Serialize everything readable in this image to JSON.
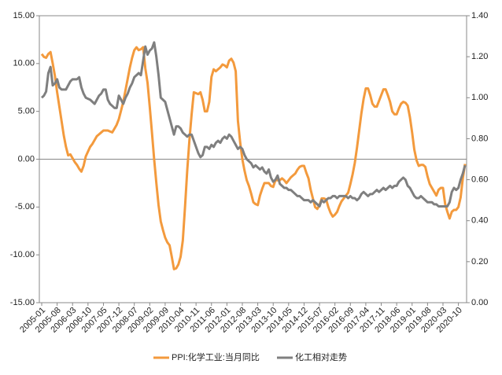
{
  "chart_data": {
    "type": "line",
    "categories": [
      "2005-01",
      null,
      null,
      null,
      null,
      null,
      null,
      "2005-08",
      null,
      null,
      null,
      null,
      null,
      null,
      "2006-03",
      null,
      null,
      null,
      null,
      null,
      null,
      "2006-10",
      null,
      null,
      null,
      null,
      null,
      null,
      "2007-05",
      null,
      null,
      null,
      null,
      null,
      null,
      "2007-12",
      null,
      null,
      null,
      null,
      null,
      null,
      "2008-07",
      null,
      null,
      null,
      null,
      null,
      null,
      "2009-02",
      null,
      null,
      null,
      null,
      null,
      null,
      "2009-09",
      null,
      null,
      null,
      null,
      null,
      null,
      "2010-04",
      null,
      null,
      null,
      null,
      null,
      null,
      "2010-11",
      null,
      null,
      null,
      null,
      null,
      null,
      "2011-06",
      null,
      null,
      null,
      null,
      null,
      null,
      "2012-01",
      null,
      null,
      null,
      null,
      null,
      null,
      "2012-08",
      null,
      null,
      null,
      null,
      null,
      null,
      "2013-03",
      null,
      null,
      null,
      null,
      null,
      null,
      "2013-10",
      null,
      null,
      null,
      null,
      null,
      null,
      "2014-05",
      null,
      null,
      null,
      null,
      null,
      null,
      "2014-12",
      null,
      null,
      null,
      null,
      null,
      null,
      "2015-07",
      null,
      null,
      null,
      null,
      null,
      null,
      "2016-02",
      null,
      null,
      null,
      null,
      null,
      null,
      "2016-09",
      null,
      null,
      null,
      null,
      null,
      null,
      "2017-04",
      null,
      null,
      null,
      null,
      null,
      null,
      "2017-11",
      null,
      null,
      null,
      null,
      null,
      null,
      "2018-06",
      null,
      null,
      null,
      null,
      null,
      null,
      "2019-01",
      null,
      null,
      null,
      null,
      null,
      null,
      "2019-08",
      null,
      null,
      null,
      null,
      null,
      null,
      "2020-03",
      null,
      null,
      null,
      null,
      null,
      null,
      "2020-10",
      null,
      null,
      null
    ],
    "series": [
      {
        "name": "PPI:化学工业:当月同比",
        "color": "#f39a3d",
        "values": [
          11,
          10.7,
          10.6,
          11,
          11.2,
          10,
          8.7,
          7,
          5.5,
          4,
          2.5,
          1.3,
          0.4,
          0.5,
          0.1,
          -0.3,
          -0.6,
          -1.0,
          -1.3,
          -0.7,
          0.3,
          0.8,
          1.3,
          1.6,
          2,
          2.4,
          2.6,
          2.8,
          3,
          3,
          3,
          2.9,
          2.8,
          3.2,
          3.6,
          4.2,
          5.1,
          6,
          7.2,
          8.4,
          9.6,
          10.6,
          11.4,
          11.7,
          11.4,
          11.5,
          11.7,
          9.5,
          8,
          5.5,
          2.8,
          0,
          -2.5,
          -4.8,
          -6.5,
          -7.4,
          -8.2,
          -8.7,
          -9,
          -10.2,
          -11.5,
          -11.4,
          -11,
          -10.2,
          -8.5,
          -5,
          -1.2,
          2,
          4.7,
          7,
          6.9,
          6.8,
          7,
          6.2,
          5,
          5,
          6,
          8.6,
          9.4,
          9.2,
          9.4,
          9.6,
          9.9,
          9.8,
          9.6,
          10.3,
          10.5,
          10.1,
          9.2,
          4,
          1.8,
          0,
          -1.2,
          -2.2,
          -2.8,
          -3.6,
          -4.5,
          -4.7,
          -4.8,
          -3.8,
          -3.1,
          -2.5,
          -2.5,
          -2.5,
          -2.8,
          -2.9,
          -2.2,
          -2.2,
          -2.2,
          -2,
          -2.2,
          -2.5,
          -2.2,
          -1.9,
          -1.7,
          -1.5,
          -1.1,
          -0.8,
          -0.7,
          -0.7,
          -1.4,
          -2,
          -3.2,
          -4.1,
          -5,
          -5.2,
          -4.8,
          -4.1,
          -4.1,
          -4.2,
          -5,
          -5.6,
          -6,
          -5.8,
          -5.5,
          -4.9,
          -4.4,
          -4.1,
          -3.8,
          -3.5,
          -2.6,
          -1.6,
          -0.4,
          1.2,
          3,
          4.8,
          6.3,
          7.4,
          7.4,
          6.7,
          5.8,
          5.5,
          5.5,
          6.1,
          6.7,
          7.3,
          7.3,
          6.7,
          6,
          5,
          4.7,
          4.7,
          5.3,
          5.8,
          6,
          5.9,
          5.6,
          4.4,
          2.8,
          1,
          -0.1,
          -0.7,
          -0.6,
          -0.6,
          -0.8,
          -1.8,
          -2.6,
          -3,
          -3.4,
          -3.8,
          -3.2,
          -3,
          -3,
          -4.7,
          -5.5,
          -6.2,
          -5.5,
          -5.3,
          -5.3,
          -5,
          -4,
          -2,
          -0.5
        ]
      },
      {
        "name": "化工相对走势",
        "color": "#7f7f7f",
        "axis": "y2",
        "values": [
          1.0,
          1.01,
          1.03,
          1.12,
          1.15,
          1.06,
          1.07,
          1.09,
          1.05,
          1.04,
          1.04,
          1.04,
          1.06,
          1.08,
          1.09,
          1.09,
          1.09,
          1.1,
          1.05,
          1.02,
          1.0,
          0.995,
          0.99,
          0.98,
          0.97,
          0.99,
          1.01,
          1.02,
          1.04,
          1.04,
          0.99,
          0.97,
          0.96,
          0.95,
          0.95,
          1.01,
          0.99,
          0.97,
          1.0,
          1.02,
          1.05,
          1.07,
          1.1,
          1.11,
          1.12,
          1.11,
          1.18,
          1.25,
          1.21,
          1.23,
          1.24,
          1.27,
          1.2,
          1.11,
          1.0,
          0.99,
          0.98,
          0.94,
          0.9,
          0.86,
          0.82,
          0.86,
          0.86,
          0.85,
          0.83,
          0.82,
          0.81,
          0.82,
          0.82,
          0.79,
          0.76,
          0.73,
          0.71,
          0.72,
          0.76,
          0.76,
          0.75,
          0.77,
          0.76,
          0.78,
          0.79,
          0.78,
          0.8,
          0.81,
          0.8,
          0.82,
          0.81,
          0.79,
          0.77,
          0.75,
          0.76,
          0.75,
          0.72,
          0.7,
          0.69,
          0.68,
          0.66,
          0.67,
          0.66,
          0.65,
          0.66,
          0.64,
          0.63,
          0.65,
          0.61,
          0.59,
          0.6,
          0.62,
          0.58,
          0.57,
          0.56,
          0.56,
          0.55,
          0.55,
          0.54,
          0.53,
          0.52,
          0.52,
          0.51,
          0.5,
          0.5,
          0.5,
          0.49,
          0.5,
          0.49,
          0.48,
          0.47,
          0.5,
          0.49,
          0.5,
          0.51,
          0.51,
          0.52,
          0.52,
          0.51,
          0.52,
          0.52,
          0.52,
          0.52,
          0.51,
          0.52,
          0.51,
          0.51,
          0.5,
          0.51,
          0.53,
          0.54,
          0.53,
          0.52,
          0.53,
          0.53,
          0.54,
          0.55,
          0.54,
          0.55,
          0.56,
          0.55,
          0.56,
          0.57,
          0.56,
          0.57,
          0.57,
          0.59,
          0.6,
          0.61,
          0.6,
          0.57,
          0.56,
          0.54,
          0.52,
          0.51,
          0.51,
          0.52,
          0.51,
          0.5,
          0.49,
          0.49,
          0.49,
          0.48,
          0.48,
          0.47,
          0.47,
          0.47,
          0.47,
          0.47,
          0.49,
          0.54,
          0.56,
          0.55,
          0.56,
          0.6,
          0.63,
          0.67
        ]
      }
    ],
    "ylim": [
      -15,
      15
    ],
    "yticks": [
      {
        "value": 15,
        "label": "15.00"
      },
      {
        "value": 10,
        "label": "10.00"
      },
      {
        "value": 5,
        "label": "5.00"
      },
      {
        "value": 0,
        "label": "0.00"
      },
      {
        "value": -5,
        "label": "-5.00"
      },
      {
        "value": -10,
        "label": "-10.00"
      },
      {
        "value": -15,
        "label": "-15.00"
      }
    ],
    "y2lim": [
      0,
      1.4
    ],
    "y2ticks": [
      {
        "value": 1.4,
        "label": "1.40"
      },
      {
        "value": 1.2,
        "label": "1.20"
      },
      {
        "value": 1.0,
        "label": "1.00"
      },
      {
        "value": 0.8,
        "label": "0.80"
      },
      {
        "value": 0.6,
        "label": "0.60"
      },
      {
        "value": 0.4,
        "label": "0.40"
      },
      {
        "value": 0.2,
        "label": "0.20"
      },
      {
        "value": 0,
        "label": "0.00"
      }
    ],
    "legend": "bottom"
  }
}
